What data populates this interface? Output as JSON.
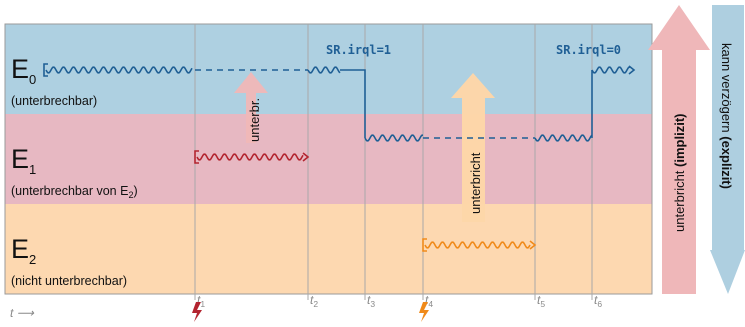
{
  "levels": [
    {
      "name": "E",
      "sub": "0",
      "note": "(unterbrechbar)",
      "color": "#aed0e1"
    },
    {
      "name": "E",
      "sub": "1",
      "note_pre": "(unterbrechbar von E",
      "note_sub": "2",
      "note_post": ")",
      "color": "#e7b8c2"
    },
    {
      "name": "E",
      "sub": "2",
      "note": "(nicht unterbrechbar)",
      "color": "#fdd8b0"
    }
  ],
  "code_labels": {
    "set": "SR.irql=1",
    "clear": "SR.irql=0"
  },
  "ticks": [
    {
      "t": "t",
      "sub": "1"
    },
    {
      "t": "t",
      "sub": "2"
    },
    {
      "t": "t",
      "sub": "3"
    },
    {
      "t": "t",
      "sub": "4"
    },
    {
      "t": "t",
      "sub": "5"
    },
    {
      "t": "t",
      "sub": "6"
    }
  ],
  "time_axis": "t ⟶",
  "inner_arrows": {
    "e1_to_e0": "unterbr.",
    "e2_to_e1": "unterbricht"
  },
  "side_arrows": {
    "up": {
      "pre": "unterbricht ",
      "bold": "(implizit)",
      "color": "#efb7b9"
    },
    "down": {
      "pre": "kann verzögern ",
      "bold": "(explizit)",
      "color": "#aecfe0"
    }
  },
  "colors": {
    "e0_line": "#1f5f95",
    "e1_line": "#b3242f",
    "e2_line": "#f08a1a",
    "interrupt_e1": "#b3242f",
    "interrupt_e2": "#f08a1a",
    "grid": "#a9a9a9"
  },
  "icons": [
    "lightning-icon",
    "lightning-icon"
  ]
}
